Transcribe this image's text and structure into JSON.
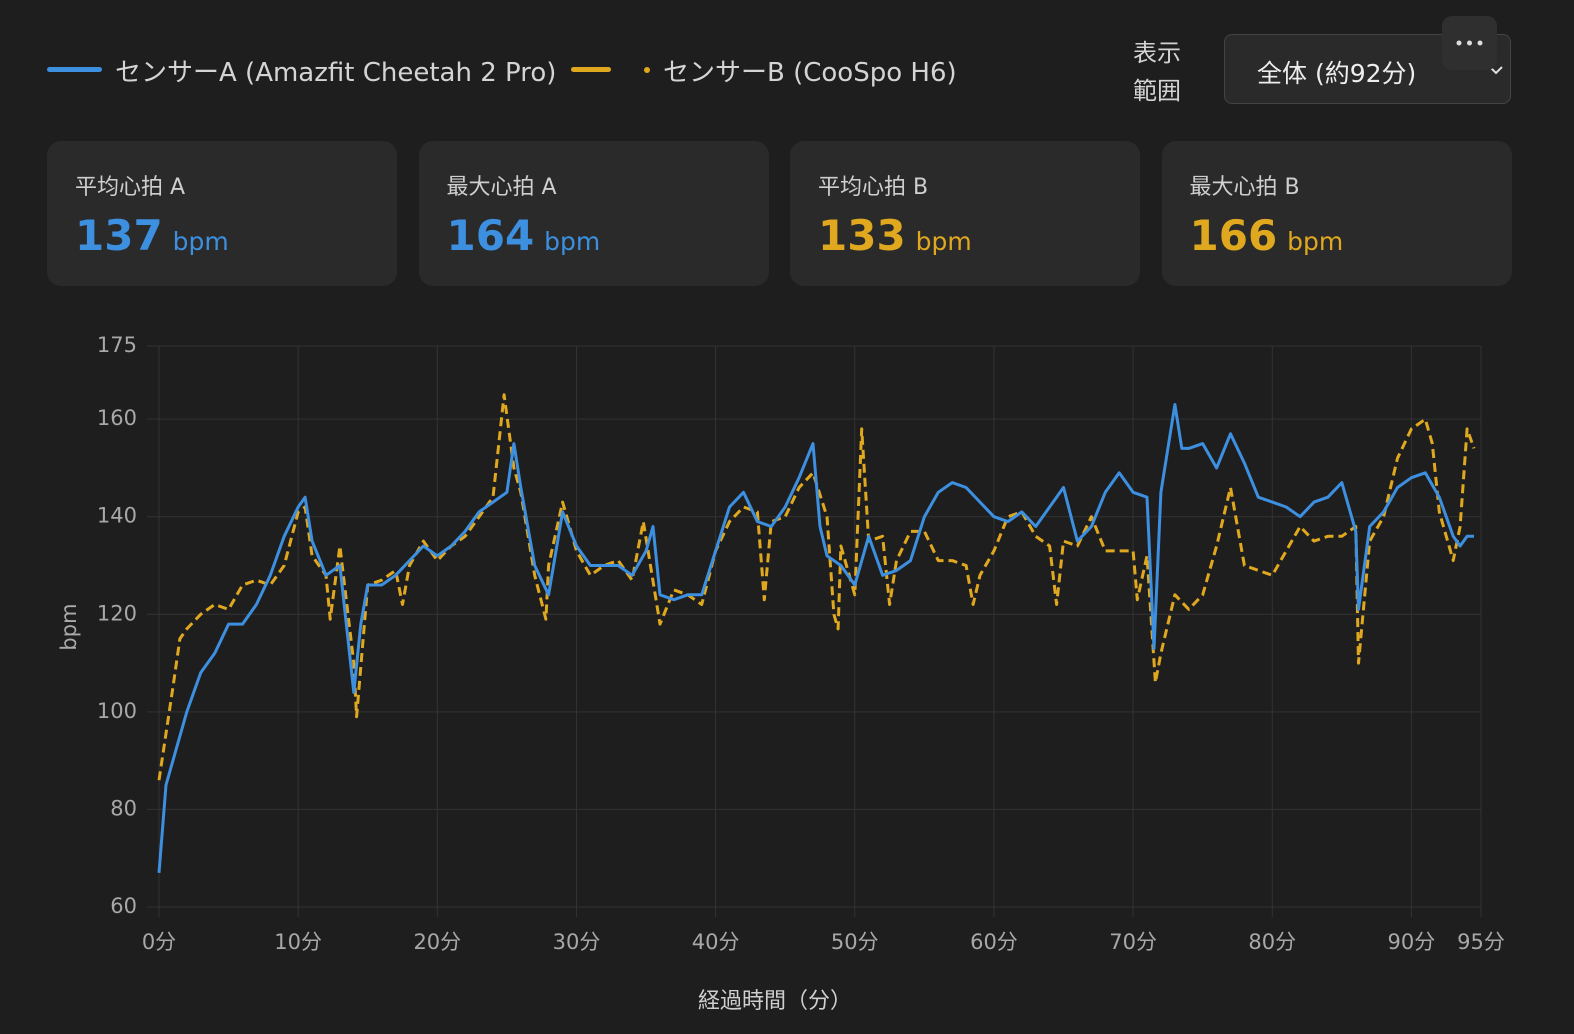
{
  "legend_note": null,
  "range_selector": {
    "label": [
      "表示",
      "範囲"
    ],
    "value": "全体 (約92分)"
  },
  "stats": [
    {
      "label": "平均心拍 A",
      "value": "137",
      "unit": "bpm",
      "color": "#3d8fe0"
    },
    {
      "label": "最大心拍 A",
      "value": "164",
      "unit": "bpm",
      "color": "#3d8fe0"
    },
    {
      "label": "平均心拍 B",
      "value": "133",
      "unit": "bpm",
      "color": "#e0a81e"
    },
    {
      "label": "最大心拍 B",
      "value": "166",
      "unit": "bpm",
      "color": "#e0a81e"
    }
  ],
  "chart_data": {
    "type": "line",
    "xlabel": "経過時間（分）",
    "ylabel": "bpm",
    "xlim": [
      0,
      95
    ],
    "ylim": [
      60,
      175
    ],
    "grid": true,
    "xticks": [
      {
        "value": 0,
        "label": "0分"
      },
      {
        "value": 10,
        "label": "10分"
      },
      {
        "value": 20,
        "label": "20分"
      },
      {
        "value": 30,
        "label": "30分"
      },
      {
        "value": 40,
        "label": "40分"
      },
      {
        "value": 50,
        "label": "50分"
      },
      {
        "value": 60,
        "label": "60分"
      },
      {
        "value": 70,
        "label": "70分"
      },
      {
        "value": 80,
        "label": "80分"
      },
      {
        "value": 90,
        "label": "90分"
      },
      {
        "value": 95,
        "label": "95分"
      }
    ],
    "yticks": [
      60,
      80,
      100,
      120,
      140,
      160,
      175
    ],
    "series": [
      {
        "name": "センサーA (Amazfit Cheetah 2 Pro)",
        "color": "#3d8fe0",
        "dash": false,
        "x": [
          0,
          0.5,
          1,
          2,
          3,
          4,
          5,
          6,
          7,
          8,
          9,
          10,
          10.5,
          11,
          12,
          13,
          14,
          14.5,
          15,
          16,
          17,
          18,
          19,
          20,
          21,
          22,
          23,
          24,
          25,
          25.5,
          26,
          27,
          28,
          29,
          30,
          31,
          32,
          33,
          34,
          35,
          35.5,
          36,
          37,
          38,
          39,
          40,
          41,
          42,
          43,
          44,
          45,
          46,
          47,
          47.5,
          48,
          49,
          50,
          51,
          52,
          53,
          54,
          55,
          56,
          57,
          58,
          59,
          60,
          61,
          62,
          63,
          64,
          65,
          66,
          67,
          68,
          69,
          70,
          71,
          71.5,
          72,
          73,
          73.5,
          74,
          75,
          76,
          77,
          78,
          79,
          80,
          81,
          82,
          83,
          84,
          85,
          86,
          86.2,
          87,
          88,
          89,
          90,
          91,
          92,
          93,
          93.5,
          94,
          94.5
        ],
        "values": [
          67,
          85,
          90,
          100,
          108,
          112,
          118,
          118,
          122,
          128,
          136,
          142,
          144,
          135,
          128,
          130,
          104,
          118,
          126,
          126,
          128,
          131,
          134,
          132,
          134,
          137,
          141,
          143,
          145,
          155,
          146,
          130,
          124,
          141,
          134,
          130,
          130,
          130,
          128,
          133,
          138,
          124,
          123,
          124,
          124,
          133,
          142,
          145,
          139,
          138,
          142,
          148,
          155,
          138,
          132,
          130,
          126,
          136,
          128,
          129,
          131,
          140,
          145,
          147,
          146,
          143,
          140,
          139,
          141,
          138,
          142,
          146,
          135,
          138,
          145,
          149,
          145,
          144,
          113,
          145,
          163,
          154,
          154,
          155,
          150,
          157,
          151,
          144,
          143,
          142,
          140,
          143,
          144,
          147,
          137,
          121,
          138,
          141,
          146,
          148,
          149,
          144,
          136,
          134,
          136,
          136
        ]
      },
      {
        "name": "センサーB (CooSpo H6)",
        "color": "#e0a81e",
        "dash": true,
        "x": [
          0,
          1,
          1.5,
          2,
          3,
          4,
          5,
          6,
          7,
          8,
          9,
          10,
          10.5,
          11,
          12,
          12.3,
          13,
          14,
          14.2,
          15,
          16,
          17,
          17.5,
          18,
          19,
          20,
          21,
          22,
          23,
          24,
          24.8,
          25.5,
          26,
          27,
          27.8,
          28,
          29,
          30,
          31,
          32,
          33,
          34,
          34.8,
          36,
          37,
          38,
          39,
          40,
          41,
          42,
          43,
          43.5,
          44,
          45,
          46,
          47,
          48,
          48.5,
          48.8,
          49,
          50,
          50.5,
          51,
          52,
          52.5,
          53,
          54,
          55,
          56,
          57,
          58,
          58.5,
          59,
          60,
          61,
          62,
          63,
          64,
          64.5,
          65,
          66,
          67,
          68,
          69,
          70,
          70.3,
          71,
          71.6,
          72,
          73,
          74,
          75,
          76,
          77,
          78,
          79,
          80,
          81,
          82,
          83,
          84,
          85,
          86,
          86.2,
          87,
          88,
          89,
          90,
          91,
          91.5,
          92,
          93,
          93.5,
          94,
          94.5
        ],
        "values": [
          86,
          105,
          115,
          117,
          120,
          122,
          121,
          126,
          127,
          126,
          130,
          141,
          142,
          132,
          128,
          119,
          134,
          110,
          99,
          126,
          127,
          129,
          122,
          130,
          135,
          131,
          134,
          136,
          140,
          144,
          165,
          150,
          145,
          128,
          119,
          130,
          143,
          133,
          128,
          130,
          131,
          127,
          139,
          118,
          125,
          124,
          122,
          133,
          139,
          142,
          141,
          123,
          139,
          140,
          146,
          149,
          140,
          120,
          117,
          134,
          124,
          158,
          135,
          136,
          122,
          131,
          137,
          137,
          131,
          131,
          130,
          122,
          128,
          133,
          140,
          141,
          136,
          134,
          122,
          135,
          134,
          140,
          133,
          133,
          133,
          123,
          132,
          106,
          112,
          124,
          121,
          124,
          134,
          146,
          130,
          129,
          128,
          133,
          138,
          135,
          136,
          136,
          138,
          110,
          135,
          140,
          152,
          158,
          160,
          155,
          141,
          131,
          138,
          158,
          154
        ]
      }
    ]
  }
}
